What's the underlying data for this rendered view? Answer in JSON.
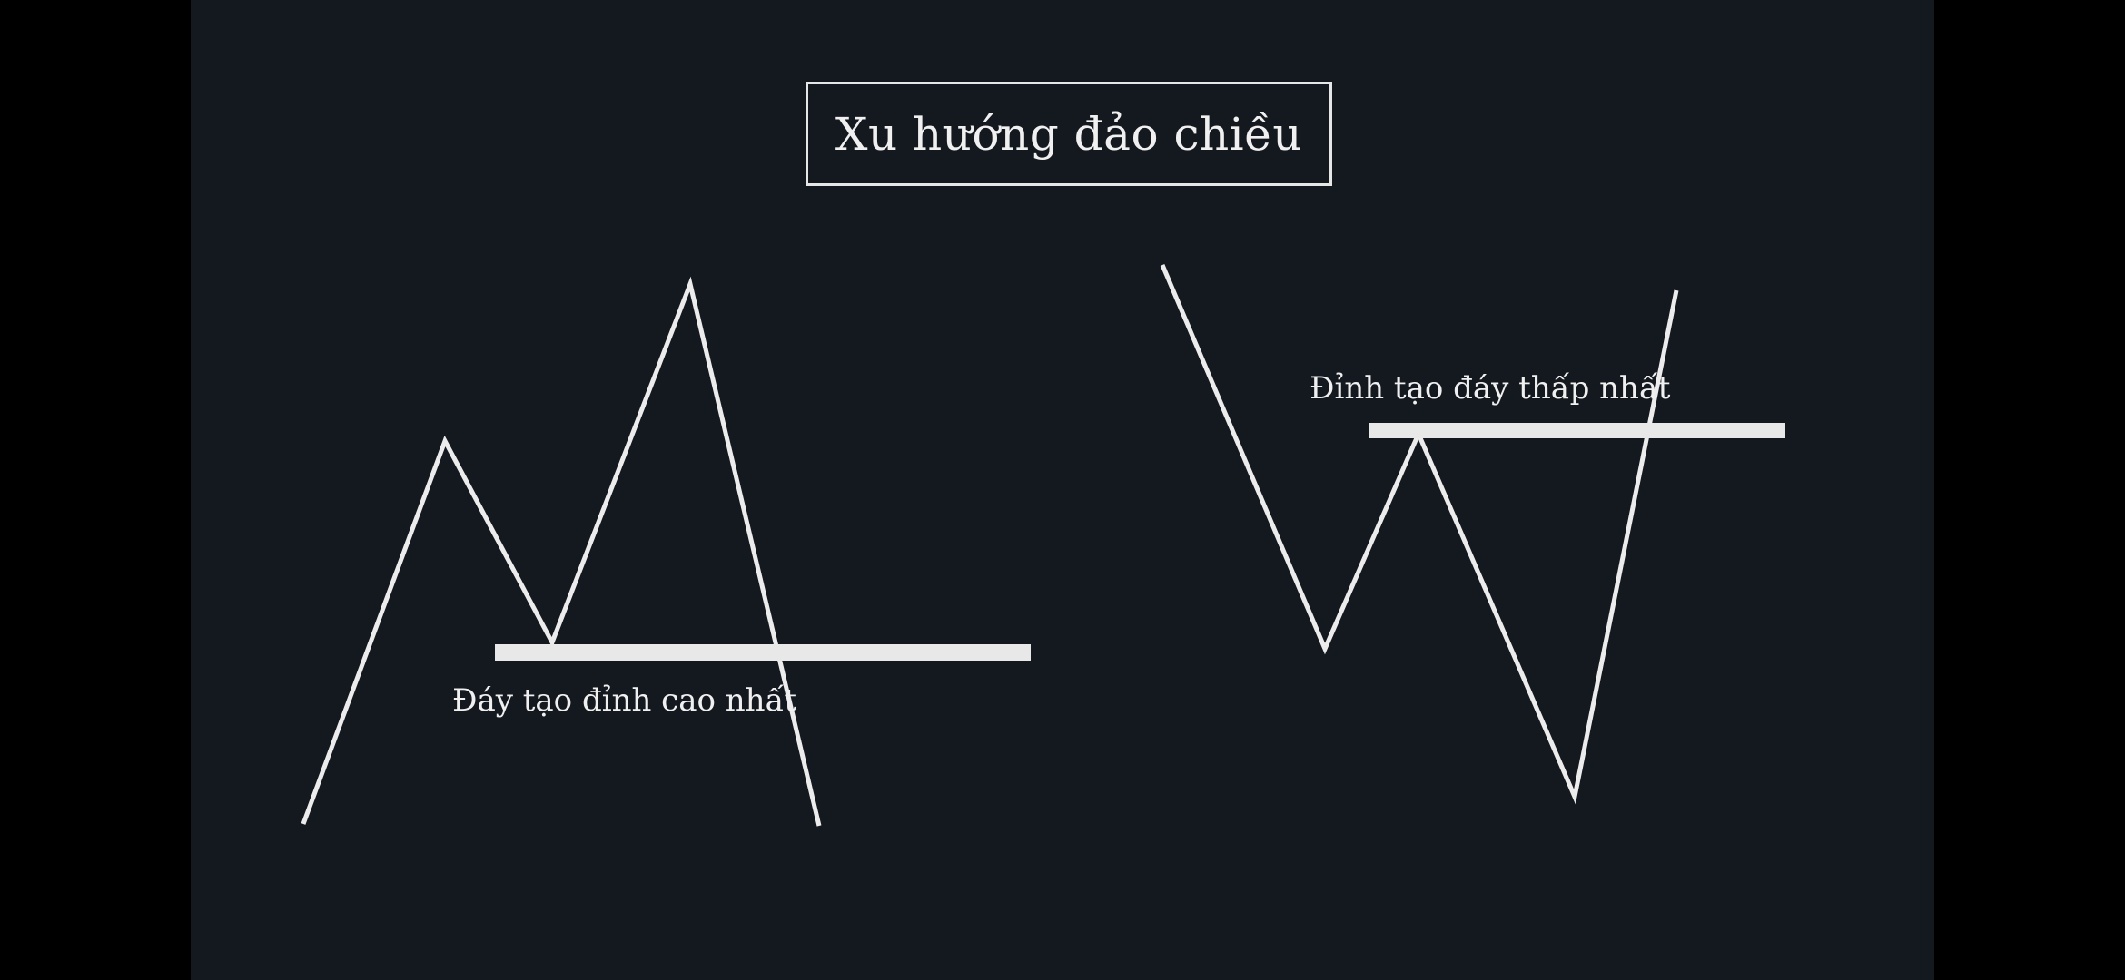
{
  "title": "Xu hướng đảo chiều",
  "left_pattern": {
    "label": "Đáy tạo đỉnh cao nhất"
  },
  "right_pattern": {
    "label": "Đỉnh tạo đáy thấp nhất"
  },
  "colors": {
    "background": "#141920",
    "outer": "#000000",
    "line": "#ececec",
    "text": "#f0f0f0"
  }
}
